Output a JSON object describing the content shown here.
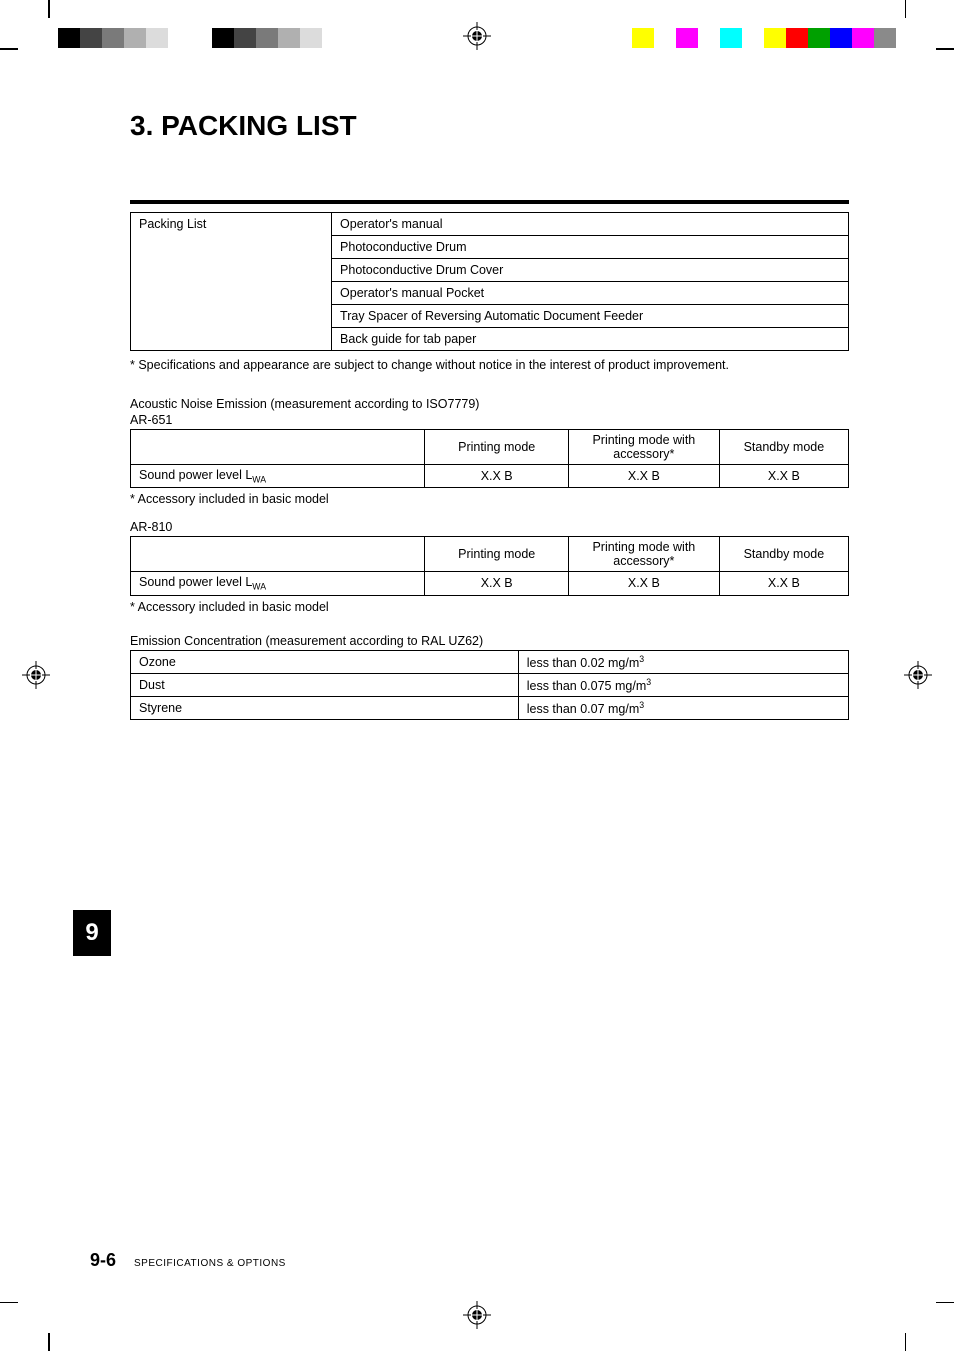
{
  "printmarks": {
    "left_colors": [
      "#000000",
      "#444444",
      "#7a7a7a",
      "#b0b0b0",
      "#dcdcdc",
      "#ffffff",
      "#ffffff",
      "#000000",
      "#444444",
      "#7a7a7a",
      "#b0b0b0",
      "#dcdcdc"
    ],
    "right_colors": [
      "#ffff00",
      "#ffffff",
      "#ff00ff",
      "#ffffff",
      "#00ffff",
      "#ffffff",
      "#ffff00",
      "#ff0000",
      "#00a000",
      "#0000ff",
      "#ff00ff",
      "#8a8a8a"
    ]
  },
  "heading": "3. PACKING LIST",
  "packing_table": {
    "left_label": "Packing List",
    "items": [
      "Operator's manual",
      "Photoconductive Drum",
      "Photoconductive Drum Cover",
      "Operator's manual Pocket",
      "Tray Spacer of Reversing Automatic Document Feeder",
      "Back guide for tab paper"
    ]
  },
  "spec_footnote": "* Specifications and appearance are subject to change without notice in the interest of product improvement.",
  "acoustic": {
    "title": "Acoustic Noise Emission (measurement according to ISO7779)",
    "models": [
      {
        "name": "AR-651",
        "headers": [
          "",
          "Printing mode",
          "Printing mode with accessory*",
          "Standby mode"
        ],
        "row_label": "Sound power level L",
        "row_sub": "WA",
        "values": [
          "X.X B",
          "X.X B",
          "X.X B"
        ],
        "note": "* Accessory included in basic model"
      },
      {
        "name": "AR-810",
        "headers": [
          "",
          "Printing mode",
          "Printing mode with accessory*",
          "Standby mode"
        ],
        "row_label": "Sound power level L",
        "row_sub": "WA",
        "values": [
          "X.X B",
          "X.X B",
          "X.X B"
        ],
        "note": "* Accessory included in basic model"
      }
    ]
  },
  "emission": {
    "title": "Emission Concentration (measurement according to RAL UZ62)",
    "rows": [
      {
        "name": "Ozone",
        "value_prefix": "less than 0.02 mg/m",
        "sup": "3"
      },
      {
        "name": "Dust",
        "value_prefix": "less than 0.075 mg/m",
        "sup": "3"
      },
      {
        "name": "Styrene",
        "value_prefix": "less than 0.07 mg/m",
        "sup": "3"
      }
    ]
  },
  "chapter_tab": "9",
  "footer": {
    "page": "9-6",
    "text": "SPECIFICATIONS & OPTIONS"
  },
  "col_widths": {
    "packing_left": "28%",
    "spec_c0": "41%",
    "spec_c1": "20%",
    "spec_c2": "21%",
    "spec_c3": "18%",
    "emis_left": "54%"
  }
}
